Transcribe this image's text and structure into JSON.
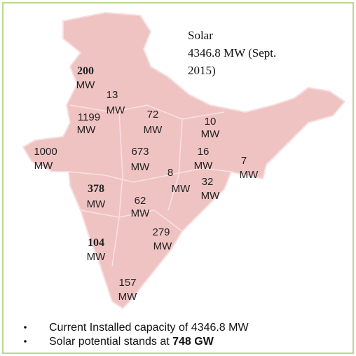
{
  "title": [
    "Solar",
    "4346.8 MW (Sept.",
    "2015)"
  ],
  "labels": [
    {
      "value": "200",
      "unit": "MW"
    },
    {
      "value": "13",
      "unit": "MW"
    },
    {
      "value": "1199",
      "unit": "MW"
    },
    {
      "value": "72",
      "unit": "MW"
    },
    {
      "value": "10",
      "unit": "MW"
    },
    {
      "value": "1000",
      "unit": "MW"
    },
    {
      "value": "673",
      "unit": "MW"
    },
    {
      "value": "16",
      "unit": "MW"
    },
    {
      "value": "7",
      "unit": "MW"
    },
    {
      "value": "8",
      "unit": "MW"
    },
    {
      "value": "32",
      "unit": "MW"
    },
    {
      "value": "378",
      "unit": "MW"
    },
    {
      "value": "62",
      "unit": "MW"
    },
    {
      "value": "279",
      "unit": "MW"
    },
    {
      "value": "104",
      "unit": "MW"
    },
    {
      "value": "157",
      "unit": "MW"
    }
  ],
  "bullets": [
    {
      "text": "Current Installed capacity of 4346.8 MW"
    },
    {
      "text": "Solar potential stands at ",
      "bold": "748 GW"
    }
  ]
}
